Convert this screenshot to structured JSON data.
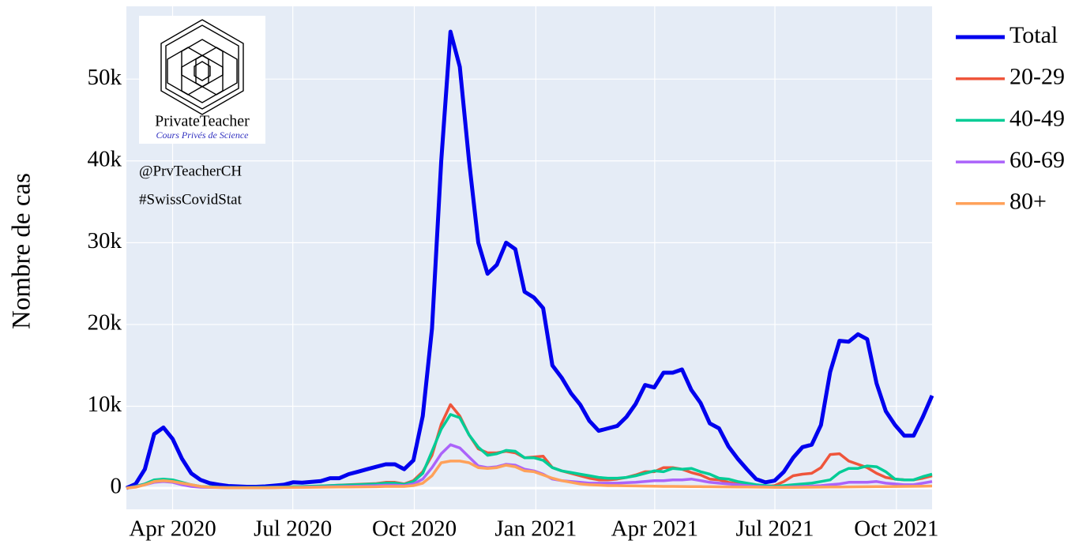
{
  "chart_data": {
    "type": "line",
    "y_axis_label": "Nombre de cas",
    "annotations": {
      "brand": "PrivateTeacher",
      "tagline": "Cours Privés de Science",
      "handle": "@PrvTeacherCH",
      "hashtag": "#SwissCovidStat"
    },
    "xlim": [
      "2020-02-26",
      "2021-10-28"
    ],
    "xticks": [
      {
        "value": "2020-04-01",
        "label": "Apr 2020"
      },
      {
        "value": "2020-07-01",
        "label": "Jul 2020"
      },
      {
        "value": "2020-10-01",
        "label": "Oct 2020"
      },
      {
        "value": "2021-01-01",
        "label": "Jan 2021"
      },
      {
        "value": "2021-04-01",
        "label": "Apr 2021"
      },
      {
        "value": "2021-07-01",
        "label": "Jul 2021"
      },
      {
        "value": "2021-10-01",
        "label": "Oct 2021"
      }
    ],
    "ylim": [
      -2600,
      58900
    ],
    "yticks": [
      0,
      {
        "value": 10000,
        "label": "10k"
      },
      {
        "value": 20000,
        "label": "20k"
      },
      {
        "value": 30000,
        "label": "30k"
      },
      {
        "value": 40000,
        "label": "40k"
      },
      {
        "value": 50000,
        "label": "50k"
      }
    ],
    "grid": true,
    "legend": "right",
    "series": [
      {
        "name": "Total",
        "color": "#0000ee",
        "values": [
          0,
          500,
          2300,
          6600,
          7400,
          6000,
          3600,
          1800,
          1000,
          600,
          400,
          250,
          200,
          150,
          150,
          200,
          300,
          400,
          700,
          650,
          750,
          850,
          1200,
          1200,
          1700,
          2000,
          2300,
          2600,
          2900,
          2900,
          2300,
          3400,
          8800,
          19500,
          40000,
          55800,
          51500,
          40000,
          30000,
          26200,
          27300,
          30000,
          29200,
          24000,
          23300,
          22000,
          15000,
          13500,
          11600,
          10200,
          8200,
          7000,
          7300,
          7600,
          8700,
          10300,
          12600,
          12300,
          14100,
          14100,
          14500,
          12000,
          10400,
          7900,
          7300,
          5100,
          3600,
          2300,
          1100,
          700,
          900,
          2000,
          3700,
          5000,
          5300,
          7700,
          14200,
          18000,
          17900,
          18800,
          18200,
          12800,
          9400,
          7700,
          6400,
          6400,
          8700,
          11300
        ]
      },
      {
        "name": "20-29",
        "color": "#ef553b",
        "values": [
          0,
          200,
          500,
          900,
          1000,
          900,
          600,
          300,
          150,
          100,
          80,
          60,
          50,
          50,
          60,
          80,
          100,
          120,
          150,
          180,
          200,
          250,
          300,
          350,
          400,
          450,
          500,
          550,
          700,
          700,
          500,
          900,
          2000,
          4000,
          7800,
          10200,
          8800,
          6500,
          4800,
          4300,
          4300,
          4500,
          4300,
          3700,
          3800,
          3900,
          2500,
          2100,
          1800,
          1500,
          1200,
          1000,
          1000,
          1100,
          1300,
          1600,
          2000,
          2000,
          2500,
          2500,
          2300,
          1900,
          1600,
          1100,
          1000,
          700,
          500,
          300,
          200,
          200,
          300,
          800,
          1500,
          1700,
          1800,
          2500,
          4100,
          4200,
          3300,
          2900,
          2500,
          1800,
          1300,
          1100,
          1000,
          1000,
          1200,
          1500
        ]
      },
      {
        "name": "40-49",
        "color": "#00cc96",
        "values": [
          0,
          200,
          500,
          1000,
          1100,
          1000,
          700,
          400,
          200,
          150,
          100,
          80,
          60,
          60,
          70,
          90,
          110,
          130,
          160,
          190,
          220,
          260,
          300,
          340,
          380,
          420,
          460,
          500,
          600,
          600,
          450,
          800,
          1800,
          4500,
          7200,
          9000,
          8600,
          6500,
          5000,
          4000,
          4200,
          4600,
          4500,
          3700,
          3700,
          3400,
          2500,
          2100,
          1900,
          1700,
          1500,
          1300,
          1200,
          1200,
          1300,
          1500,
          1800,
          2100,
          2000,
          2400,
          2300,
          2400,
          2000,
          1700,
          1200,
          1100,
          800,
          600,
          400,
          300,
          200,
          300,
          400,
          500,
          600,
          800,
          1000,
          1900,
          2400,
          2400,
          2700,
          2600,
          2000,
          1100,
          1000,
          1000,
          1400,
          1700
        ]
      },
      {
        "name": "60-69",
        "color": "#ab63fa",
        "values": [
          0,
          150,
          400,
          700,
          800,
          700,
          400,
          200,
          100,
          80,
          60,
          50,
          40,
          40,
          40,
          50,
          60,
          70,
          80,
          100,
          120,
          140,
          160,
          180,
          200,
          230,
          260,
          300,
          350,
          350,
          300,
          500,
          1100,
          2500,
          4200,
          5300,
          4900,
          3800,
          2700,
          2500,
          2600,
          2900,
          2800,
          2300,
          2100,
          1700,
          1100,
          900,
          800,
          700,
          600,
          600,
          600,
          600,
          650,
          700,
          800,
          900,
          900,
          1000,
          1000,
          1100,
          900,
          700,
          600,
          500,
          400,
          300,
          200,
          150,
          100,
          100,
          150,
          200,
          250,
          300,
          400,
          500,
          700,
          700,
          700,
          800,
          600,
          500,
          400,
          400,
          600,
          800
        ]
      },
      {
        "name": "80+",
        "color": "#ffa15a",
        "values": [
          0,
          100,
          400,
          800,
          900,
          800,
          600,
          400,
          200,
          100,
          60,
          40,
          30,
          30,
          30,
          40,
          50,
          60,
          70,
          80,
          90,
          100,
          110,
          120,
          130,
          140,
          150,
          160,
          200,
          200,
          200,
          300,
          600,
          1500,
          3100,
          3300,
          3300,
          3100,
          2500,
          2400,
          2500,
          2800,
          2600,
          2100,
          2000,
          1600,
          1200,
          900,
          700,
          500,
          400,
          350,
          300,
          300,
          280,
          260,
          240,
          220,
          200,
          200,
          190,
          180,
          170,
          160,
          150,
          140,
          130,
          120,
          110,
          100,
          90,
          80,
          80,
          90,
          100,
          110,
          120,
          130,
          140,
          150,
          160,
          170,
          180,
          190,
          200,
          210,
          230,
          250
        ]
      }
    ]
  }
}
